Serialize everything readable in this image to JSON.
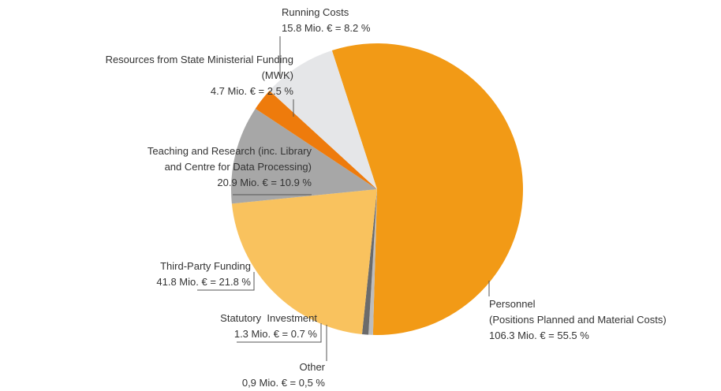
{
  "chart_data": {
    "type": "pie",
    "categories": [
      "Personnel\n(Positions Planned and Material Costs)",
      "Other",
      "Statutory  Investment",
      "Third-Party Funding",
      "Teaching and Research (inc. Library\nand Centre for Data Processing)",
      "Resources from State Ministerial Funding\n(MWK)",
      "Running Costs"
    ],
    "values": [
      55.5,
      0.5,
      0.7,
      21.8,
      10.9,
      2.5,
      8.2
    ],
    "value_labels": [
      "106.3 Mio. € = 55.5 %",
      "0,9 Mio. € = 0,5 %",
      "1.3 Mio. € = 0.7 %",
      "41.8 Mio. € = 21.8 %",
      "20.9 Mio. € = 10.9 %",
      "4.7 Mio. € = 2.5 %",
      "15.8 Mio. € = 8.2 %"
    ],
    "colors": [
      "#f29a16",
      "#bdbdbd",
      "#6b6b6b",
      "#f9c25e",
      "#a7a7a7",
      "#ee7b0c",
      "#e5e6e8"
    ]
  }
}
